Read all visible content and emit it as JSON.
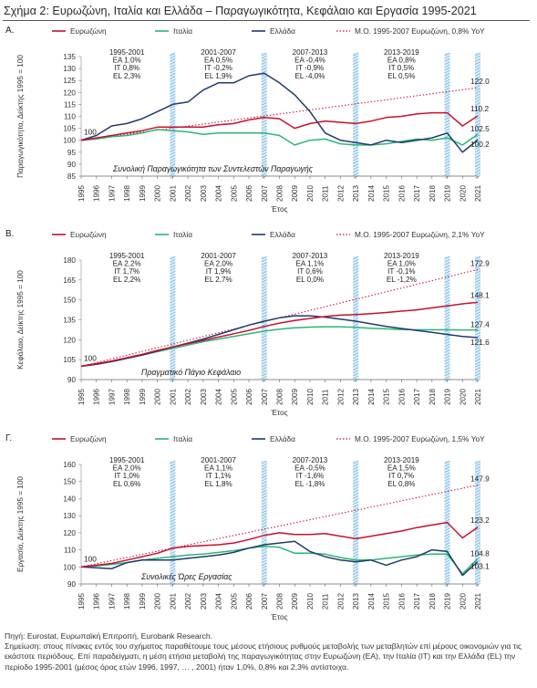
{
  "figure_title": "Σχήμα 2: Ευρωζώνη, Ιταλία και Ελλάδα – Παραγωγικότητα, Κεφάλαιο και Εργασία 1995-2021",
  "source": "Πηγή: Eurostat, Ευρωπαϊκή Επιτροπή, Eurobank Research.",
  "note": "Σημείωση: στους πίνακες εντός του σχήματος παραθέτουμε τους μέσους ετήσιους ρυθμούς μεταβολής των μεταβλητών επί μέρους οικονομιών για τις εκάστοτε περιόδους. Επί παραδείγματι, η μέση ετήσια μεταβολή της παραγωγικότητας στην Ευρωζώνη (ΕΑ), την Ιταλία (ΙΤ) και την Ελλάδα (EL) την περίοδο 1995-2001 (μέσος όρος ετών 1996, 1997, … , 2001) ήταν 1,0%, 0,8% και 2,3% αντίστοιχα.",
  "colors": {
    "ea": "#c8102e",
    "it": "#2bb673",
    "el": "#1f3a70",
    "trend": "#c8102e",
    "band": "#7ab8e0"
  },
  "chart_data": [
    {
      "type": "line",
      "panel_label": "Α.",
      "inner_title": "Συνολική Παραγωγικότητα των Συντελεστών Παραγωγής",
      "xlabel": "",
      "ylabel": "Παραγωγικότητα, Δείκτης 1995 = 100",
      "ylim": [
        85,
        135
      ],
      "yticks": [
        85,
        90,
        95,
        100,
        105,
        110,
        115,
        120,
        125,
        130,
        135
      ],
      "x": [
        1995,
        1996,
        1997,
        1998,
        1999,
        2000,
        2001,
        2002,
        2003,
        2004,
        2005,
        2006,
        2007,
        2008,
        2009,
        2010,
        2011,
        2012,
        2013,
        2014,
        2015,
        2016,
        2017,
        2018,
        2019,
        2020,
        2021
      ],
      "series": [
        {
          "key": "ea",
          "name": "Ευρωζώνη",
          "values": [
            100,
            101,
            102,
            103,
            104,
            105.5,
            105.5,
            105.5,
            105.5,
            106.5,
            107,
            108.5,
            109.5,
            109,
            105,
            107,
            108,
            107.5,
            107,
            108,
            109.5,
            110,
            111,
            111.5,
            111.5,
            106,
            110.2
          ]
        },
        {
          "key": "it",
          "name": "Ιταλία",
          "values": [
            100,
            100.5,
            101.5,
            102,
            103,
            104.5,
            104,
            103.5,
            102.5,
            103,
            103,
            103,
            103,
            102,
            98,
            100,
            100.5,
            98.5,
            98,
            98,
            98.5,
            99.5,
            100.5,
            100,
            101,
            98,
            102.5
          ]
        },
        {
          "key": "el",
          "name": "Ελλάδα",
          "values": [
            100,
            102,
            106,
            107,
            109,
            112,
            115,
            116,
            121,
            124,
            124,
            127,
            128,
            124,
            119,
            112,
            103,
            100,
            99,
            98,
            100,
            99,
            100,
            101,
            103,
            95,
            100.2
          ]
        },
        {
          "key": "trend",
          "name": "Μ.Ο. 1995-2007 Ευρωζώνη, 0,8% YoY",
          "style": "dotted",
          "x0": 1995,
          "y0": 100,
          "x1": 2021,
          "y1": 122.0
        }
      ],
      "end_labels": [
        "122.0",
        "110.2",
        "102.5",
        "100.2"
      ],
      "start_label": "100",
      "periods": [
        {
          "label": "1995-2001",
          "ea": "EA 1,0%",
          "it": "IT 0,8%",
          "el": "EL 2,3%"
        },
        {
          "label": "2001-2007",
          "ea": "EA 0,5%",
          "it": "IT -0,2%",
          "el": "EL 1,9%"
        },
        {
          "label": "2007-2013",
          "ea": "EA -0,4%",
          "it": "IT -0,9%",
          "el": "EL -4,0%"
        },
        {
          "label": "2013-2019",
          "ea": "EA 0,8%",
          "it": "IT 0,5%",
          "el": "EL 0,5%"
        }
      ],
      "bands": [
        2001,
        2007,
        2013,
        2019,
        2021
      ],
      "axis_title": "Έτος"
    },
    {
      "type": "line",
      "panel_label": "Β.",
      "inner_title": "Πραγματικό Πάγιο Κεφάλαιο",
      "xlabel": "",
      "ylabel": "Κεφάλαιο, Δείκτης 1995 = 100",
      "ylim": [
        90,
        180
      ],
      "yticks": [
        90,
        105,
        120,
        135,
        150,
        165,
        180
      ],
      "x": [
        1995,
        1996,
        1997,
        1998,
        1999,
        2000,
        2001,
        2002,
        2003,
        2004,
        2005,
        2006,
        2007,
        2008,
        2009,
        2010,
        2011,
        2012,
        2013,
        2014,
        2015,
        2016,
        2017,
        2018,
        2019,
        2020,
        2021
      ],
      "series": [
        {
          "key": "ea",
          "name": "Ευρωζώνη",
          "values": [
            100,
            102,
            104,
            106.5,
            109,
            112,
            114.5,
            117,
            119.5,
            122,
            124.5,
            127,
            130,
            132.5,
            134.5,
            136,
            137.5,
            138.5,
            139,
            139.7,
            140.5,
            141.5,
            142.5,
            144,
            145.5,
            147,
            148.1
          ]
        },
        {
          "key": "it",
          "name": "Ιταλία",
          "values": [
            100,
            101.5,
            103.5,
            106,
            108.5,
            111,
            113.5,
            116,
            118.5,
            120.5,
            122.5,
            124.5,
            126.5,
            128,
            129,
            129.5,
            129.8,
            129.8,
            129.3,
            128.7,
            128.2,
            127.7,
            127.5,
            127.5,
            127.5,
            127.4,
            127.4
          ]
        },
        {
          "key": "el",
          "name": "Ελλάδα",
          "values": [
            100,
            101.5,
            103.5,
            106,
            108.5,
            111.5,
            114.5,
            117.5,
            120.5,
            124,
            127.5,
            131,
            134,
            136.5,
            138,
            138,
            137,
            135.5,
            134,
            132,
            130,
            128.5,
            127,
            125.5,
            124,
            122.5,
            121.6
          ]
        },
        {
          "key": "trend",
          "name": "Μ.Ο. 1995-2007 Ευρωζώνη, 2,1% YoY",
          "style": "dotted",
          "x0": 1995,
          "y0": 100,
          "x1": 2021,
          "y1": 172.9
        }
      ],
      "end_labels": [
        "172.9",
        "148.1",
        "127.4",
        "121.6"
      ],
      "start_label": "100",
      "periods": [
        {
          "label": "1995-2001",
          "ea": "EA 2,2%",
          "it": "IT 1,7%",
          "el": "EL 2,2%"
        },
        {
          "label": "2001-2007",
          "ea": "EA 2,0%",
          "it": "IT 1,9%",
          "el": "EL 2,7%"
        },
        {
          "label": "2007-2013",
          "ea": "EA 1,1%",
          "it": "IT 0,6%",
          "el": "EL 0,0%"
        },
        {
          "label": "2013-2019",
          "ea": "EA 1,0%",
          "it": "IT -0,1%",
          "el": "EL -1,2%"
        }
      ],
      "bands": [
        2001,
        2007,
        2013,
        2019,
        2021
      ],
      "axis_title": "Έτος"
    },
    {
      "type": "line",
      "panel_label": "Γ.",
      "inner_title": "Συνολικές Ώρες Εργασίας",
      "xlabel": "",
      "ylabel": "Εργασία, Δείκτης 1995 = 100",
      "ylim": [
        90,
        160
      ],
      "yticks": [
        90,
        100,
        110,
        120,
        130,
        140,
        150,
        160
      ],
      "x": [
        1995,
        1996,
        1997,
        1998,
        1999,
        2000,
        2001,
        2002,
        2003,
        2004,
        2005,
        2006,
        2007,
        2008,
        2009,
        2010,
        2011,
        2012,
        2013,
        2014,
        2015,
        2016,
        2017,
        2018,
        2019,
        2020,
        2021
      ],
      "series": [
        {
          "key": "ea",
          "name": "Ευρωζώνη",
          "values": [
            100,
            101,
            102,
            104,
            106,
            108,
            111,
            112,
            112.5,
            113,
            114,
            116,
            118.5,
            120,
            119,
            119,
            119.5,
            118,
            116.5,
            118,
            119.5,
            121,
            123,
            124.5,
            126,
            117,
            123.2
          ]
        },
        {
          "key": "it",
          "name": "Ιταλία",
          "values": [
            100,
            100.5,
            101.5,
            102.5,
            104,
            105,
            106,
            107,
            107.5,
            108.5,
            109.5,
            111,
            112,
            111.5,
            108,
            108,
            107.5,
            105.5,
            104,
            104,
            105,
            106,
            107,
            107.5,
            107.5,
            96,
            104.8
          ]
        },
        {
          "key": "el",
          "name": "Ελλάδα",
          "values": [
            100,
            99.5,
            99,
            102.5,
            104,
            104,
            104,
            105,
            106,
            107,
            108.5,
            111,
            113,
            114,
            115,
            109,
            106,
            104,
            103,
            104,
            101,
            104,
            106,
            110,
            109,
            95,
            103.1
          ]
        },
        {
          "key": "trend",
          "name": "Μ.Ο. 1995-2007 Ευρωζώνη, 1,5% YoY",
          "style": "dotted",
          "x0": 1995,
          "y0": 100,
          "x1": 2021,
          "y1": 147.9
        }
      ],
      "end_labels": [
        "147.9",
        "123.2",
        "104.8",
        "103.1"
      ],
      "start_label": "100",
      "periods": [
        {
          "label": "1995-2001",
          "ea": "EA 2,0%",
          "it": "IT 1,0%",
          "el": "EL 0,6%"
        },
        {
          "label": "2001-2007",
          "ea": "EA 1,1%",
          "it": "IT 1,1%",
          "el": "EL 1,8%"
        },
        {
          "label": "2007-2013",
          "ea": "EA -0,5%",
          "it": "IT -1,6%",
          "el": "EL -1,8%"
        },
        {
          "label": "2013-2019",
          "ea": "EA 1,5%",
          "it": "IT 0,7%",
          "el": "EL 0,8%"
        }
      ],
      "bands": [
        2001,
        2007,
        2013,
        2019,
        2021
      ],
      "axis_title": "Έτος"
    }
  ]
}
